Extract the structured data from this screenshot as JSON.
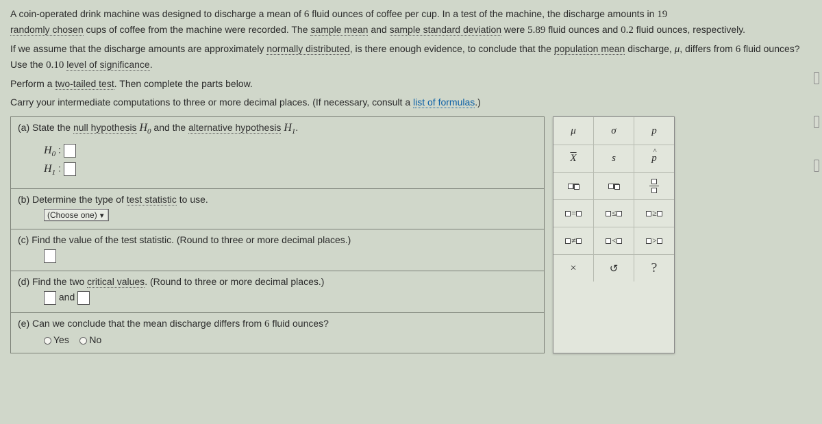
{
  "problem": {
    "p1_a": "A coin-operated drink machine was designed to discharge a mean of ",
    "mean_design": "6",
    "p1_b": " fluid ounces of coffee per cup. In a test of the machine, the discharge amounts in ",
    "n_cups": "19",
    "p1_c_link": "randomly chosen",
    "p1_d": " cups of coffee from the machine were recorded. The ",
    "link_sample_mean": "sample mean",
    "p1_e": " and ",
    "link_sample_sd": "sample standard deviation",
    "p1_f": " were ",
    "xbar": "5.89",
    "p1_g": " fluid ounces and ",
    "sdev": "0.2",
    "p1_h": " fluid ounces, respectively.",
    "p2_a": "If we assume that the discharge amounts are approximately ",
    "link_normal": "normally distributed",
    "p2_b": ", is there enough evidence, to conclude that the ",
    "link_popmean": "population mean",
    "p2_c": " discharge, ",
    "mu_sym": "μ",
    "p2_d": ", differs from ",
    "mean_design2": "6",
    "p2_e": " fluid ounces? Use the ",
    "alpha": "0.10",
    "link_sig": "level of significance",
    "p2_f": ".",
    "p3_a": "Perform a ",
    "link_2tail": "two-tailed test",
    "p3_b": ". Then complete the parts below.",
    "p4_a": "Carry your intermediate computations to three or more decimal places. (If necessary, consult a ",
    "link_formulas": "list of formulas",
    "p4_b": ".)"
  },
  "parts": {
    "a_text_pre": "(a)  State the ",
    "a_link_null": "null hypothesis",
    "a_text_mid": " ",
    "a_H0": "H",
    "a_text_mid2": " and the ",
    "a_link_alt": "alternative hypothesis",
    "a_text_end": " ",
    "a_H1": "H",
    "a_period": ".",
    "H0_label": "H",
    "H1_label": "H",
    "colon": " : ",
    "b_text_pre": "(b)  Determine the type of ",
    "b_link": "test statistic",
    "b_text_post": " to use.",
    "choose_one": "(Choose one)",
    "c_text": "(c)  Find the value of the test statistic. (Round to three or more decimal places.)",
    "d_text_pre": "(d)  Find the two ",
    "d_link": "critical values",
    "d_text_post": ". (Round to three or more decimal places.)",
    "and": " and ",
    "e_text_pre": "(e)  Can we conclude that the mean discharge differs from ",
    "e_val": "6",
    "e_text_post": " fluid ounces?",
    "yes": "Yes",
    "no": "No"
  },
  "palette": {
    "r1": [
      "μ",
      "σ",
      "p"
    ],
    "r2_xbar": "X",
    "r2_s": "s",
    "r2_phat": "p",
    "r6": [
      "×",
      "↺",
      "?"
    ]
  },
  "colors": {
    "bg": "#d0d7ca",
    "border": "#7a7f76",
    "link": "#0a5fa6"
  }
}
